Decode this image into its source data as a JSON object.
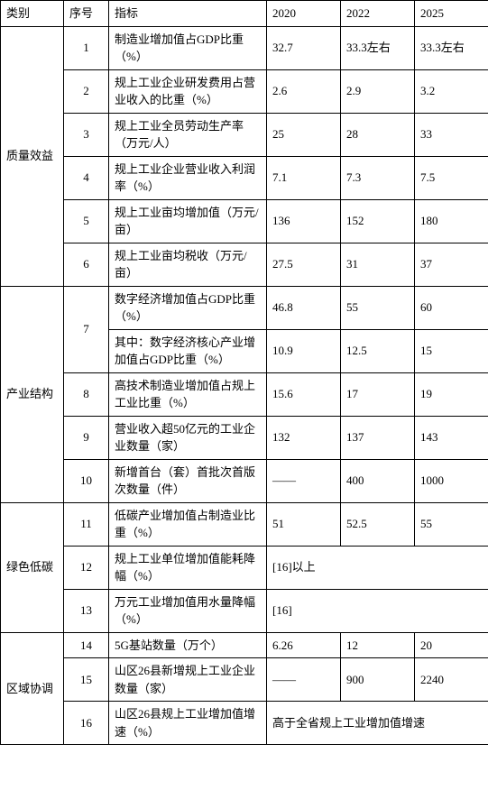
{
  "headers": {
    "category": "类别",
    "number": "序号",
    "indicator": "指标",
    "y2020": "2020",
    "y2022": "2022",
    "y2025": "2025"
  },
  "categories": [
    {
      "name": "质量效益",
      "rowspan": 6
    },
    {
      "name": "产业结构",
      "rowspan": 5
    },
    {
      "name": "绿色低碳",
      "rowspan": 3
    },
    {
      "name": "区域协调",
      "rowspan": 3
    }
  ],
  "rows": [
    {
      "cat": 0,
      "num": "1",
      "indicator": "制造业增加值占GDP比重（%）",
      "y2020": "32.7",
      "y2022": "33.3左右",
      "y2025": "33.3左右"
    },
    {
      "cat": 0,
      "num": "2",
      "indicator": "规上工业企业研发费用占营业收入的比重（%）",
      "y2020": "2.6",
      "y2022": "2.9",
      "y2025": "3.2"
    },
    {
      "cat": 0,
      "num": "3",
      "indicator": "规上工业全员劳动生产率（万元/人）",
      "y2020": "25",
      "y2022": "28",
      "y2025": "33"
    },
    {
      "cat": 0,
      "num": "4",
      "indicator": "规上工业企业营业收入利润率（%）",
      "y2020": "7.1",
      "y2022": "7.3",
      "y2025": "7.5"
    },
    {
      "cat": 0,
      "num": "5",
      "indicator": "规上工业亩均增加值（万元/亩）",
      "y2020": "136",
      "y2022": "152",
      "y2025": "180"
    },
    {
      "cat": 0,
      "num": "6",
      "indicator": "规上工业亩均税收（万元/亩）",
      "y2020": "27.5",
      "y2022": "31",
      "y2025": "37"
    },
    {
      "cat": 1,
      "num": "7",
      "indicator": "数字经济增加值占GDP比重（%）",
      "y2020": "46.8",
      "y2022": "55",
      "y2025": "60",
      "sub": true
    },
    {
      "cat": 1,
      "indicator": "其中：数字经济核心产业增加值占GDP比重（%）",
      "y2020": "10.9",
      "y2022": "12.5",
      "y2025": "15"
    },
    {
      "cat": 1,
      "num": "8",
      "indicator": "高技术制造业增加值占规上工业比重（%）",
      "y2020": "15.6",
      "y2022": "17",
      "y2025": "19"
    },
    {
      "cat": 1,
      "num": "9",
      "indicator": "营业收入超50亿元的工业企业数量（家）",
      "y2020": "132",
      "y2022": "137",
      "y2025": "143"
    },
    {
      "cat": 1,
      "num": "10",
      "indicator": "新增首台（套）首批次首版次数量（件）",
      "y2020": "——",
      "y2022": "400",
      "y2025": "1000"
    },
    {
      "cat": 2,
      "num": "11",
      "indicator": "低碳产业增加值占制造业比重（%）",
      "y2020": "51",
      "y2022": "52.5",
      "y2025": "55"
    },
    {
      "cat": 2,
      "num": "12",
      "indicator": "规上工业单位增加值能耗降幅（%）",
      "merged3": "[16]以上"
    },
    {
      "cat": 2,
      "num": "13",
      "indicator": "万元工业增加值用水量降幅（%）",
      "merged3": "[16]"
    },
    {
      "cat": 3,
      "num": "14",
      "indicator": "5G基站数量（万个）",
      "y2020": "6.26",
      "y2022": "12",
      "y2025": "20"
    },
    {
      "cat": 3,
      "num": "15",
      "indicator": "山区26县新增规上工业企业数量（家）",
      "y2020": "——",
      "y2022": "900",
      "y2025": "2240"
    },
    {
      "cat": 3,
      "num": "16",
      "indicator": "山区26县规上工业增加值增速（%）",
      "merged3": "高于全省规上工业增加值增速"
    }
  ]
}
